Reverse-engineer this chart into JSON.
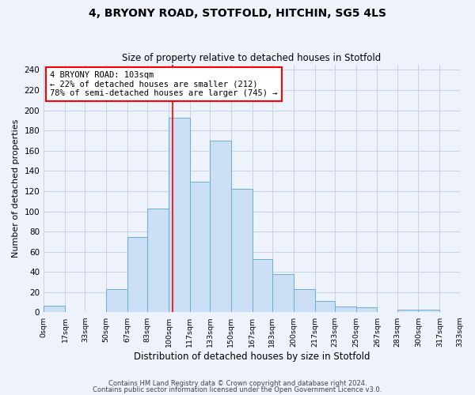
{
  "title": "4, BRYONY ROAD, STOTFOLD, HITCHIN, SG5 4LS",
  "subtitle": "Size of property relative to detached houses in Stotfold",
  "xlabel": "Distribution of detached houses by size in Stotfold",
  "ylabel": "Number of detached properties",
  "bin_labels": [
    "0sqm",
    "17sqm",
    "33sqm",
    "50sqm",
    "67sqm",
    "83sqm",
    "100sqm",
    "117sqm",
    "133sqm",
    "150sqm",
    "167sqm",
    "183sqm",
    "200sqm",
    "217sqm",
    "233sqm",
    "250sqm",
    "267sqm",
    "283sqm",
    "300sqm",
    "317sqm",
    "333sqm"
  ],
  "bin_edges": [
    0,
    17,
    33,
    50,
    67,
    83,
    100,
    117,
    133,
    150,
    167,
    183,
    200,
    217,
    233,
    250,
    267,
    283,
    300,
    317,
    333
  ],
  "bar_heights": [
    7,
    0,
    0,
    23,
    75,
    103,
    193,
    129,
    170,
    122,
    53,
    38,
    23,
    11,
    6,
    5,
    0,
    3,
    3,
    0
  ],
  "bar_color": "#cce0f5",
  "bar_edge_color": "#6aaed6",
  "vline_x": 103,
  "vline_color": "red",
  "ylim": [
    0,
    245
  ],
  "yticks": [
    0,
    20,
    40,
    60,
    80,
    100,
    120,
    140,
    160,
    180,
    200,
    220,
    240
  ],
  "annotation_title": "4 BRYONY ROAD: 103sqm",
  "annotation_line1": "← 22% of detached houses are smaller (212)",
  "annotation_line2": "78% of semi-detached houses are larger (745) →",
  "annotation_box_color": "white",
  "annotation_box_edge": "red",
  "footer1": "Contains HM Land Registry data © Crown copyright and database right 2024.",
  "footer2": "Contains public sector information licensed under the Open Government Licence v3.0.",
  "bg_color": "#eef3fb",
  "grid_color": "#c8d4e8"
}
